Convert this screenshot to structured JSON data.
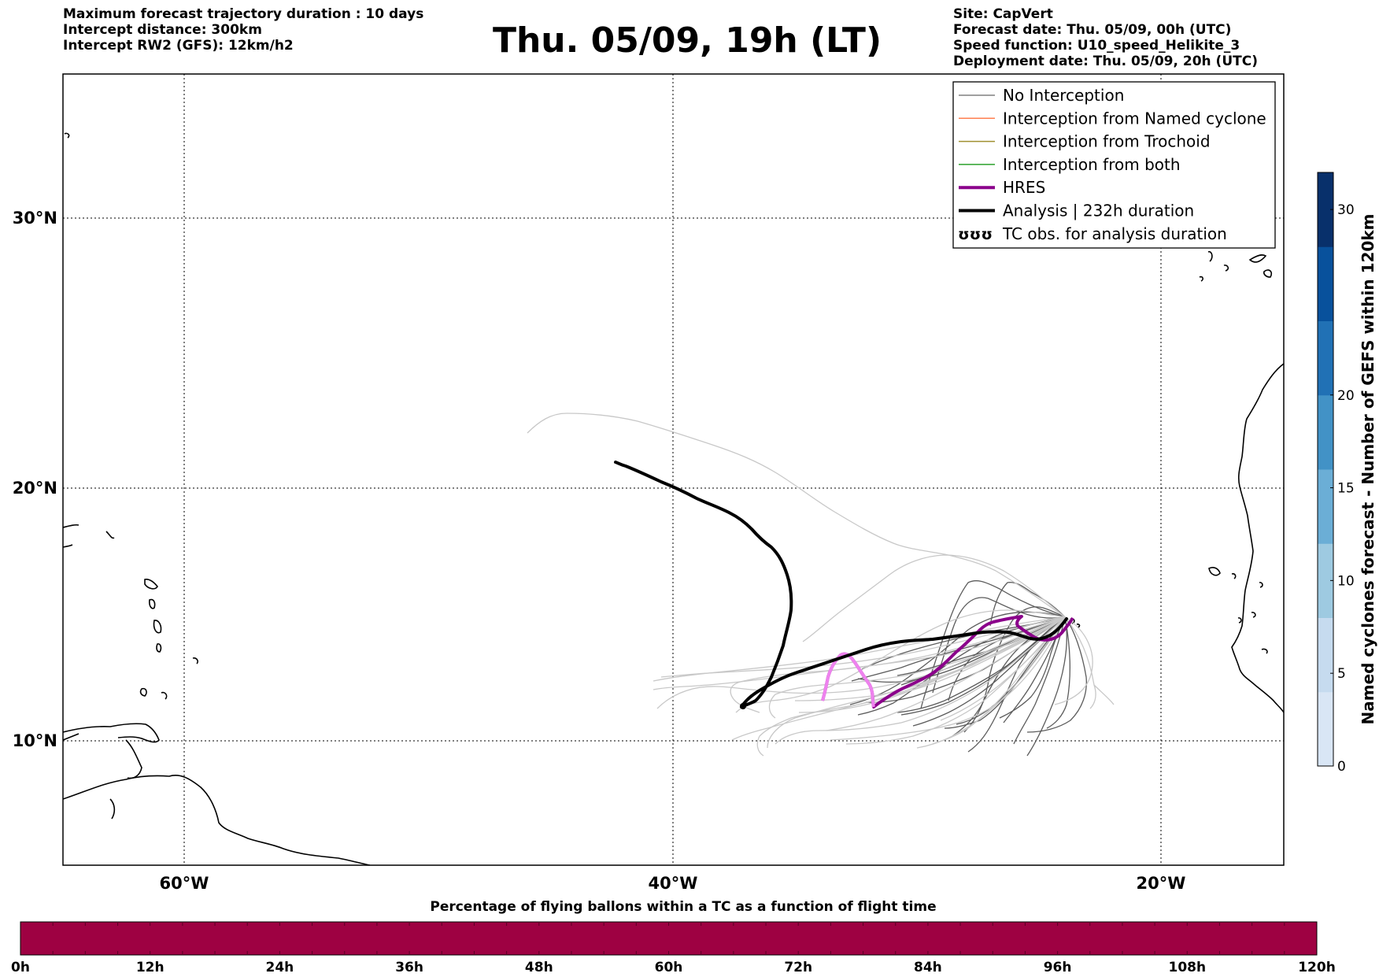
{
  "header_left": [
    "Maximum forecast trajectory duration : 10 days",
    "Intercept distance: 300km",
    "Intercept RW2 (GFS):  12km/h2"
  ],
  "title": "Thu. 05/09, 19h (LT)",
  "header_right": [
    "Site: CapVert",
    "Forecast date: Thu. 05/09, 00h (UTC)",
    "Speed function: U10_speed_Helikite_3",
    "Deployment date: Thu. 05/09, 20h (UTC)"
  ],
  "map": {
    "lat_labels": [
      "30°N",
      "20°N",
      "10°N"
    ],
    "lon_labels": [
      "60°W",
      "40°W",
      "20°W"
    ],
    "grid": "dotted"
  },
  "legend": {
    "items": [
      {
        "label": "No Interception",
        "color": "#808080",
        "style": "thin"
      },
      {
        "label": "Interception from Named cyclone",
        "color": "#ff7f50",
        "style": "thin"
      },
      {
        "label": "Interception from Trochoid",
        "color": "#a09030",
        "style": "thin"
      },
      {
        "label": "Interception from both",
        "color": "#2ca02c",
        "style": "thin"
      },
      {
        "label": "HRES",
        "color": "#8b008b",
        "style": "thick"
      },
      {
        "label": "Analysis | 232h duration",
        "color": "#000000",
        "style": "thick"
      },
      {
        "label": "TC obs. for analysis duration",
        "color": "#000000",
        "style": "symbol"
      }
    ],
    "symbol_glyph": "ʊʊʊ"
  },
  "right_colorbar": {
    "label": "Named cyclones forecast - Number of GEFS within 120km",
    "ticks": [
      "0",
      "5",
      "10",
      "15",
      "20",
      "30"
    ],
    "colors": [
      "#d9e6f5",
      "#c6dbef",
      "#9ecae1",
      "#6baed6",
      "#4292c6",
      "#2171b5",
      "#08519c",
      "#08306b"
    ]
  },
  "bottom_colorbar": {
    "title": "Percentage of flying ballons within a TC as a function of flight time",
    "fill_color": "#9e0142",
    "ticks": [
      "0h",
      "12h",
      "24h",
      "36h",
      "48h",
      "60h",
      "72h",
      "84h",
      "96h",
      "108h",
      "120h"
    ]
  }
}
